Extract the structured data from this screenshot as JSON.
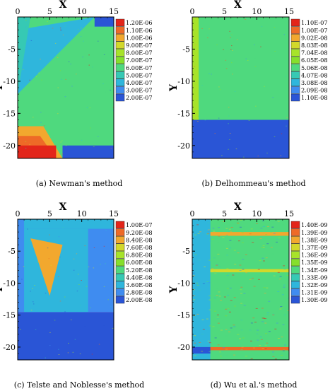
{
  "figure": {
    "colors": {
      "ramp": [
        "#2a55d6",
        "#3f8cf0",
        "#2fb6dc",
        "#36c9b4",
        "#4fd97e",
        "#6ddb47",
        "#86df2c",
        "#a7e32a",
        "#d2d82b",
        "#f2a82e",
        "#ee6a27",
        "#e3251a"
      ]
    }
  },
  "chart_data": [
    {
      "type": "heatmap",
      "caption": "(a) Newman's method",
      "xlabel": "X",
      "ylabel": "Y",
      "xlim": [
        0,
        15
      ],
      "ylim": [
        -22,
        0
      ],
      "xticks": [
        "0",
        "5",
        "10",
        "15"
      ],
      "yticks": [
        "-5",
        "-10",
        "-15",
        "-20"
      ],
      "legend_position": "right",
      "legend_levels": [
        "1.20E-06",
        "1.10E-06",
        "1.00E-06",
        "9.00E-07",
        "8.00E-07",
        "7.00E-07",
        "6.00E-07",
        "5.00E-07",
        "4.00E-07",
        "3.00E-07",
        "2.00E-07"
      ],
      "regions": [
        {
          "polygon": [
            [
              0,
              0
            ],
            [
              15,
              0
            ],
            [
              15,
              -22
            ],
            [
              0,
              -22
            ]
          ],
          "level": 5
        },
        {
          "polygon": [
            [
              0,
              -2
            ],
            [
              12,
              0
            ],
            [
              0,
              -12
            ]
          ],
          "level": 3
        },
        {
          "polygon": [
            [
              0,
              0
            ],
            [
              2,
              0
            ],
            [
              0,
              -12
            ]
          ],
          "level": 4
        },
        {
          "polygon": [
            [
              0,
              -17
            ],
            [
              4,
              -17
            ],
            [
              7,
              -22
            ],
            [
              0,
              -22
            ]
          ],
          "level": 9
        },
        {
          "polygon": [
            [
              0,
              -18.5
            ],
            [
              3.5,
              -18.5
            ],
            [
              6,
              -22
            ],
            [
              0,
              -22
            ]
          ],
          "level": 10
        },
        {
          "polygon": [
            [
              0,
              -20
            ],
            [
              6,
              -20
            ],
            [
              6,
              -22
            ],
            [
              0,
              -22
            ]
          ],
          "level": 11
        },
        {
          "polygon": [
            [
              7,
              -20
            ],
            [
              15,
              -20
            ],
            [
              15,
              -22
            ],
            [
              7,
              -22
            ]
          ],
          "level": 1
        },
        {
          "polygon": [
            [
              12,
              0
            ],
            [
              15,
              0
            ],
            [
              15,
              -1.5
            ],
            [
              12,
              -1.5
            ]
          ],
          "level": 1
        }
      ]
    },
    {
      "type": "heatmap",
      "caption": "(b) Delhommeau's method",
      "xlabel": "X",
      "ylabel": "Y",
      "xlim": [
        0,
        15
      ],
      "ylim": [
        -22,
        0
      ],
      "xticks": [
        "0",
        "5",
        "10",
        "15"
      ],
      "yticks": [
        "-5",
        "-10",
        "-15",
        "-20"
      ],
      "legend_position": "right",
      "legend_levels": [
        "1.10E-07",
        "1.00E-07",
        "9.02E-08",
        "8.03E-08",
        "7.04E-08",
        "6.05E-08",
        "5.06E-08",
        "4.07E-08",
        "3.08E-08",
        "2.09E-08",
        "1.10E-08"
      ],
      "regions": [
        {
          "polygon": [
            [
              0,
              0
            ],
            [
              15,
              0
            ],
            [
              15,
              -16
            ],
            [
              0,
              -16
            ]
          ],
          "level": 5
        },
        {
          "polygon": [
            [
              0,
              0
            ],
            [
              1,
              0
            ],
            [
              1,
              -16
            ],
            [
              0,
              -16
            ]
          ],
          "level": 7
        },
        {
          "polygon": [
            [
              0,
              -16
            ],
            [
              15,
              -16
            ],
            [
              15,
              -22
            ],
            [
              0,
              -22
            ]
          ],
          "level": 1
        }
      ]
    },
    {
      "type": "heatmap",
      "caption": "(c) Telste and Noblesse's method",
      "xlabel": "X",
      "ylabel": "Y",
      "xlim": [
        0,
        15
      ],
      "ylim": [
        -22,
        0
      ],
      "xticks": [
        "0",
        "5",
        "10",
        "15"
      ],
      "yticks": [
        "-5",
        "-10",
        "-15",
        "-20"
      ],
      "legend_position": "right",
      "legend_levels": [
        "1.00E-07",
        "9.20E-08",
        "8.40E-08",
        "7.60E-08",
        "6.80E-08",
        "6.00E-08",
        "5.20E-08",
        "4.40E-08",
        "3.60E-08",
        "2.80E-08",
        "2.00E-08"
      ],
      "regions": [
        {
          "polygon": [
            [
              0,
              0
            ],
            [
              15,
              0
            ],
            [
              15,
              -14.5
            ],
            [
              0,
              -14.5
            ]
          ],
          "level": 2
        },
        {
          "polygon": [
            [
              0,
              -14.5
            ],
            [
              15,
              -14.5
            ],
            [
              15,
              -22
            ],
            [
              0,
              -22
            ]
          ],
          "level": 1
        },
        {
          "polygon": [
            [
              1,
              -1.5
            ],
            [
              11,
              -1.5
            ],
            [
              11,
              -14.5
            ],
            [
              1,
              -14.5
            ]
          ],
          "level": 3
        },
        {
          "polygon": [
            [
              1,
              0
            ],
            [
              15,
              0
            ],
            [
              15,
              -1.5
            ],
            [
              1,
              -1.5
            ]
          ],
          "level": 3
        },
        {
          "polygon": [
            [
              2,
              -3
            ],
            [
              7,
              -4
            ],
            [
              5,
              -12
            ]
          ],
          "level": 9
        }
      ]
    },
    {
      "type": "heatmap",
      "caption": "(d) Wu et al.'s method",
      "xlabel": "X",
      "ylabel": "Y",
      "xlim": [
        0,
        15
      ],
      "ylim": [
        -22,
        0
      ],
      "xticks": [
        "0",
        "5",
        "10",
        "15"
      ],
      "yticks": [
        "-5",
        "-10",
        "-15",
        "-20"
      ],
      "legend_position": "right",
      "legend_levels": [
        "1.40E-09",
        "1.39E-09",
        "1.38E-09",
        "1.37E-09",
        "1.36E-09",
        "1.35E-09",
        "1.34E-09",
        "1.33E-09",
        "1.32E-09",
        "1.31E-09",
        "1.30E-09"
      ],
      "regions": [
        {
          "polygon": [
            [
              0,
              0
            ],
            [
              15,
              0
            ],
            [
              15,
              -22
            ],
            [
              0,
              -22
            ]
          ],
          "level": 5
        },
        {
          "polygon": [
            [
              0,
              0
            ],
            [
              2.8,
              0
            ],
            [
              2.8,
              -22
            ],
            [
              0,
              -22
            ]
          ],
          "level": 3
        },
        {
          "polygon": [
            [
              2.8,
              -2
            ],
            [
              15,
              -2
            ],
            [
              15,
              -2.6
            ],
            [
              2.8,
              -2.6
            ]
          ],
          "level": 9
        },
        {
          "polygon": [
            [
              2.8,
              -7.8
            ],
            [
              15,
              -7.8
            ],
            [
              15,
              -8.3
            ],
            [
              2.8,
              -8.3
            ]
          ],
          "level": 8
        },
        {
          "polygon": [
            [
              2.8,
              -20
            ],
            [
              15,
              -20
            ],
            [
              15,
              -20.5
            ],
            [
              2.8,
              -20.5
            ]
          ],
          "level": 10
        },
        {
          "polygon": [
            [
              0,
              -20
            ],
            [
              2.8,
              -20
            ],
            [
              2.8,
              -21
            ],
            [
              0,
              -21
            ]
          ],
          "level": 1
        }
      ]
    }
  ]
}
